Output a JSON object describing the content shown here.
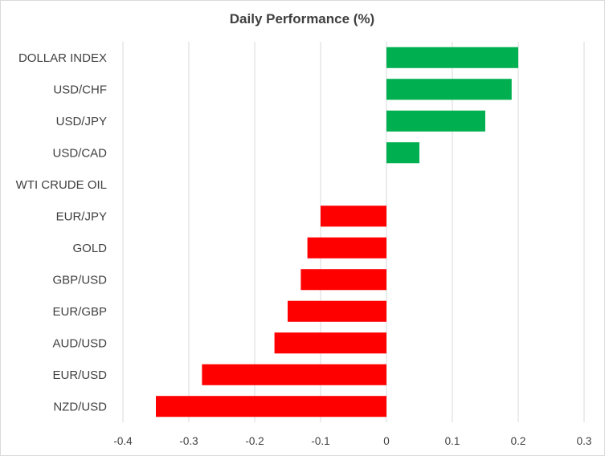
{
  "chart_data": {
    "type": "bar",
    "orientation": "horizontal",
    "title": "Daily Performance  (%)",
    "xlabel": "",
    "ylabel": "",
    "categories": [
      "DOLLAR INDEX",
      "USD/CHF",
      "USD/JPY",
      "USD/CAD",
      "WTI CRUDE OIL",
      "EUR/JPY",
      "GOLD",
      "GBP/USD",
      "EUR/GBP",
      "AUD/USD",
      "EUR/USD",
      "NZD/USD"
    ],
    "values": [
      0.2,
      0.19,
      0.15,
      0.05,
      0,
      -0.1,
      -0.12,
      -0.13,
      -0.15,
      -0.17,
      -0.28,
      -0.35
    ],
    "xlim": [
      -0.4,
      0.3
    ],
    "xticks": [
      -0.4,
      -0.3,
      -0.2,
      -0.1,
      0,
      0.1,
      0.2,
      0.3
    ],
    "xtick_labels": [
      "-0.4",
      "-0.3",
      "-0.2",
      "-0.1",
      "0",
      "0.1",
      "0.2",
      "0.3"
    ],
    "grid": "vertical",
    "legend": "none",
    "colors": {
      "positive": "#00b050",
      "negative": "#ff0000",
      "grid": "#d9d9d9",
      "text": "#404040"
    }
  }
}
